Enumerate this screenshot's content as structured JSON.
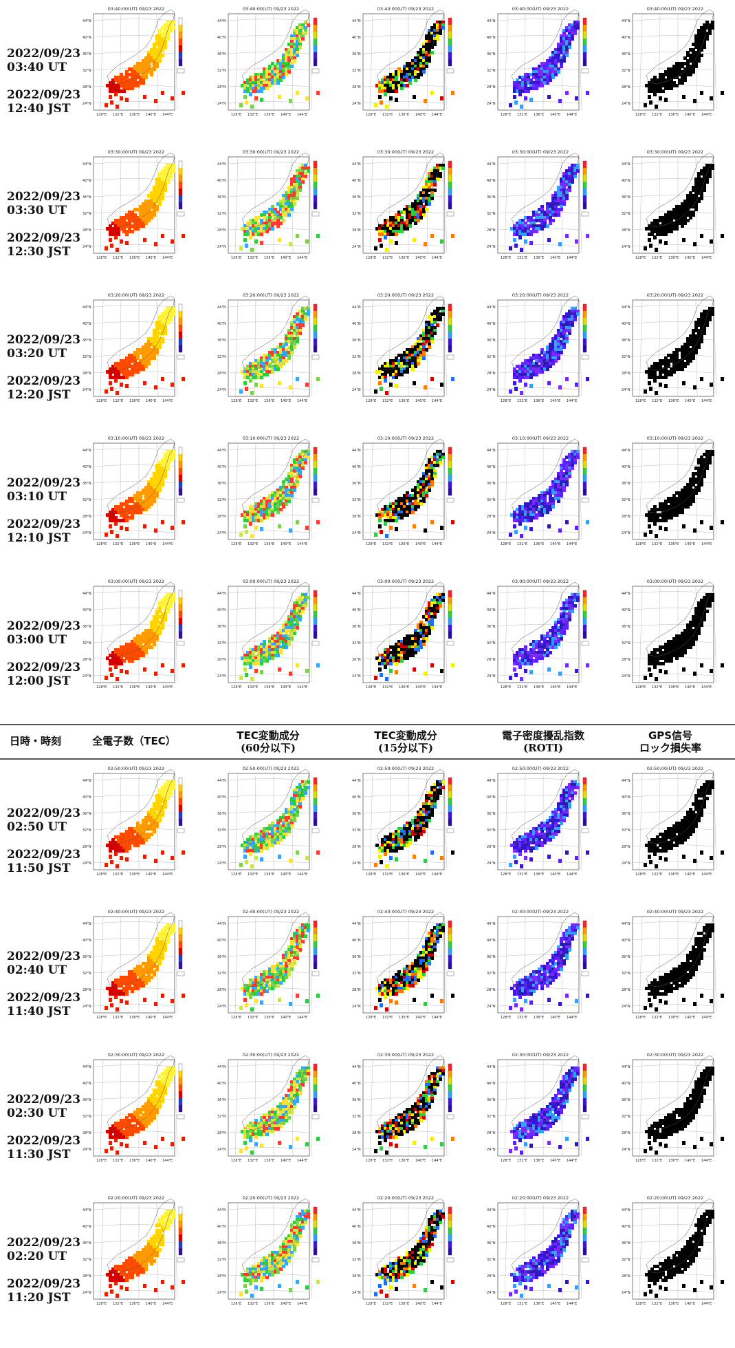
{
  "header": {
    "datetime": "日時・時刻",
    "tec": "全電子数（TEC）",
    "tec60_l1": "TEC変動成分",
    "tec60_l2": "(60分以下)",
    "tec15_l1": "TEC変動成分",
    "tec15_l2": "(15分以下)",
    "roti_l1": "電子密度擾乱指数",
    "roti_l2": "(ROTI)",
    "gps_l1": "GPS信号",
    "gps_l2": "ロック損失率"
  },
  "map_axes": {
    "lat_ticks": [
      "44°N",
      "40°N",
      "36°N",
      "32°N",
      "28°N",
      "24°N"
    ],
    "lon_ticks": [
      "128°E",
      "132°E",
      "136°E",
      "140°E",
      "144°E"
    ]
  },
  "colors": {
    "tec": [
      "#d40000",
      "#ff4a00",
      "#ff9a00",
      "#ffd400",
      "#fff23a"
    ],
    "tec60": [
      "#2ecc40",
      "#7bd14a",
      "#c7e64b",
      "#ffe03a",
      "#35a7ff",
      "#ff3b2f"
    ],
    "tec15": [
      "#000000",
      "#d40000",
      "#ff7a00",
      "#2ecc40",
      "#1f6fff",
      "#f2f200"
    ],
    "roti": [
      "#3a14d8",
      "#5b22ff",
      "#2b1ab0",
      "#7a2bff",
      "#33a0ff"
    ],
    "gps": [
      "#000000"
    ]
  },
  "frames_top": [
    {
      "ut_date": "2022/09/23",
      "ut_time": "03:40 UT",
      "jst_date": "2022/09/23",
      "jst_time": "12:40 JST",
      "map_title": "03:40:00(UT) 09/23 2022"
    },
    {
      "ut_date": "2022/09/23",
      "ut_time": "03:30 UT",
      "jst_date": "2022/09/23",
      "jst_time": "12:30 JST",
      "map_title": "03:30:00(UT) 09/23 2022"
    },
    {
      "ut_date": "2022/09/23",
      "ut_time": "03:20 UT",
      "jst_date": "2022/09/23",
      "jst_time": "12:20 JST",
      "map_title": "03:20:00(UT) 09/23 2022"
    },
    {
      "ut_date": "2022/09/23",
      "ut_time": "03:10 UT",
      "jst_date": "2022/09/23",
      "jst_time": "12:10 JST",
      "map_title": "03:10:00(UT) 09/23 2022"
    },
    {
      "ut_date": "2022/09/23",
      "ut_time": "03:00 UT",
      "jst_date": "2022/09/23",
      "jst_time": "12:00 JST",
      "map_title": "03:00:00(UT) 09/23 2022"
    }
  ],
  "frames_bottom": [
    {
      "ut_date": "2022/09/23",
      "ut_time": "02:50 UT",
      "jst_date": "2022/09/23",
      "jst_time": "11:50 JST",
      "map_title": "02:50:00(UT) 09/23 2022"
    },
    {
      "ut_date": "2022/09/23",
      "ut_time": "02:40 UT",
      "jst_date": "2022/09/23",
      "jst_time": "11:40 JST",
      "map_title": "02:40:00(UT) 09/23 2022"
    },
    {
      "ut_date": "2022/09/23",
      "ut_time": "02:30 UT",
      "jst_date": "2022/09/23",
      "jst_time": "11:30 JST",
      "map_title": "02:30:00(UT) 09/23 2022"
    },
    {
      "ut_date": "2022/09/23",
      "ut_time": "02:20 UT",
      "jst_date": "2022/09/23",
      "jst_time": "11:20 JST",
      "map_title": "02:20:00(UT) 09/23 2022"
    }
  ]
}
